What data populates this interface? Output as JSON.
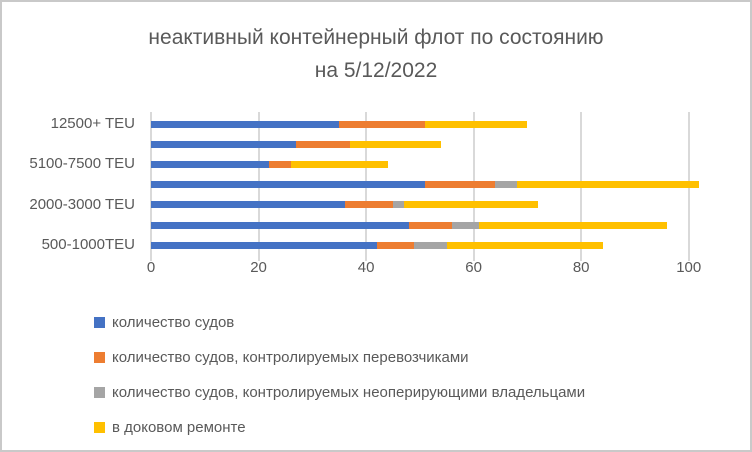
{
  "title": {
    "line1": "неактивный контейнерный флот по состоянию",
    "line2": "на 5/12/2022"
  },
  "chart_data": {
    "type": "bar",
    "orientation": "horizontal",
    "stacked": true,
    "grid": true,
    "legend_position": "bottom-left",
    "categories": [
      "12500+ TEU",
      "",
      "5100-7500 TEU",
      "",
      "2000-3000 TEU",
      "",
      "500-1000TEU"
    ],
    "series": [
      {
        "name": "количество судов",
        "color": "#4472C4",
        "values": [
          35,
          27,
          22,
          51,
          36,
          48,
          42
        ]
      },
      {
        "name": "количество судов, контролируемых перевозчиками",
        "color": "#ED7D31",
        "values": [
          16,
          10,
          4,
          13,
          9,
          8,
          7
        ]
      },
      {
        "name": "количество судов, контролируемых неоперирующими владельцами",
        "color": "#A5A5A5",
        "values": [
          0,
          0,
          0,
          4,
          2,
          5,
          6
        ]
      },
      {
        "name": "в доковом ремонте",
        "color": "#FFC000",
        "values": [
          19,
          17,
          18,
          34,
          25,
          35,
          29
        ]
      }
    ],
    "bar_totals": [
      70,
      54,
      44,
      102,
      72,
      96,
      84
    ],
    "x_axis": {
      "ticks": [
        "0",
        "20",
        "40",
        "60",
        "80",
        "100"
      ],
      "tick_values": [
        0,
        20,
        40,
        60,
        80,
        100
      ],
      "max": 104.7
    },
    "colors": {
      "text": "#595959",
      "gridline": "#D9D9D9",
      "frame_border": "#C9C9C9"
    }
  }
}
